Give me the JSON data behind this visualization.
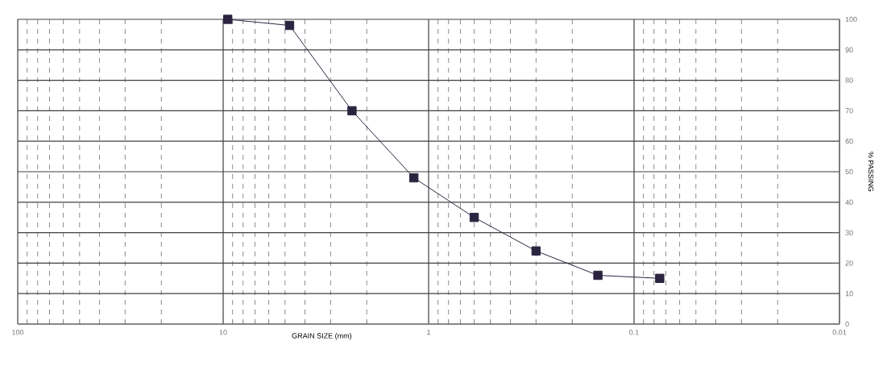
{
  "chart_data": {
    "type": "line",
    "xlabel": "GRAIN SIZE (mm)",
    "ylabel": "% PASSING",
    "x": [
      9.5,
      4.75,
      2.36,
      1.18,
      0.6,
      0.3,
      0.15,
      0.075
    ],
    "series": [
      {
        "color": "#2b2440",
        "values": [
          100,
          98,
          70,
          48,
          35,
          24,
          16,
          15
        ]
      }
    ],
    "log": "x",
    "xlim": [
      100,
      0.01
    ],
    "xticks": [
      100,
      10,
      1,
      0.1,
      0.01
    ],
    "ylim": [
      0,
      100
    ],
    "yticks": [
      0,
      10,
      20,
      30,
      40,
      50,
      60,
      70,
      80,
      90,
      100
    ],
    "grid": true,
    "marker": "square",
    "line_style": "solid"
  }
}
